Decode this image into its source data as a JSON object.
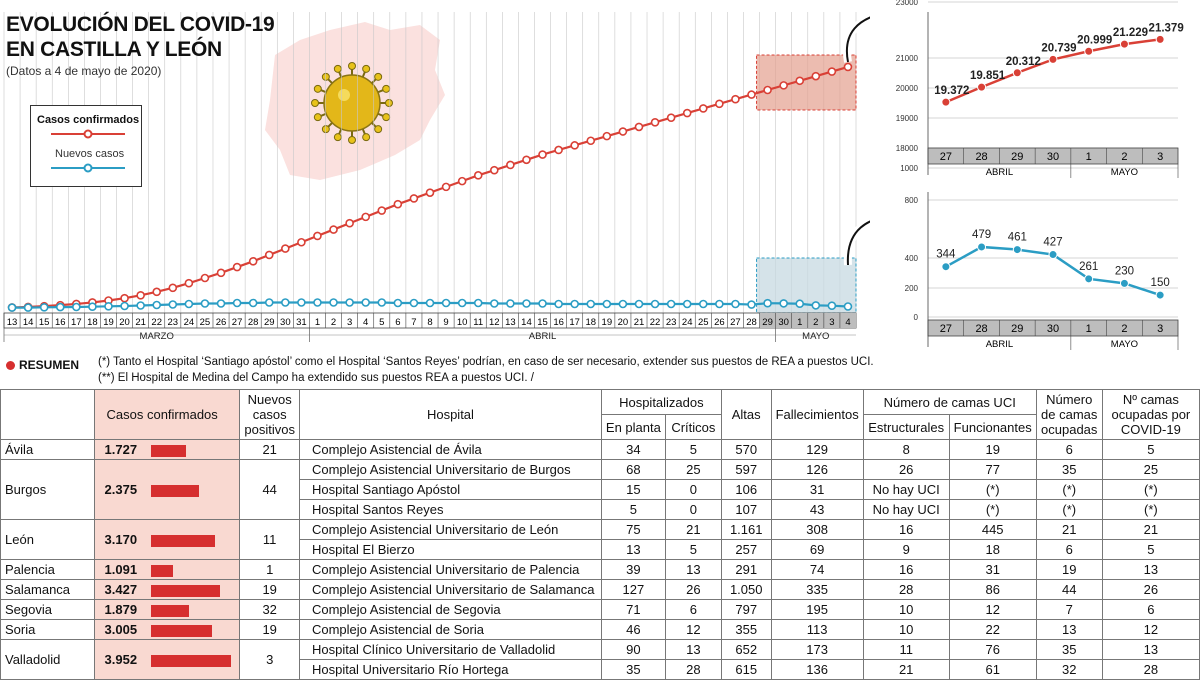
{
  "header": {
    "title_line1": "EVOLUCIÓN DEL COVID-19",
    "title_line2": "EN CASTILLA Y LEÓN",
    "subtitle": "(Datos a 4 de mayo de 2020)"
  },
  "legend": {
    "confirmed": "Casos confirmados",
    "new_cases": "Nuevos casos"
  },
  "colors": {
    "confirmed": "#d94036",
    "new": "#2b9dc4",
    "map": "#fbe1df",
    "highlight_red": "#e4a08e",
    "highlight_blue": "#c7d9e2"
  },
  "icons": {
    "virus": "virus-icon",
    "arrow": "curved-arrow-icon"
  },
  "chart_data": [
    {
      "type": "line",
      "title": "EVOLUCIÓN DEL COVID-19 EN CASTILLA Y LEÓN",
      "x": [
        "13",
        "14",
        "15",
        "16",
        "17",
        "18",
        "19",
        "20",
        "21",
        "22",
        "23",
        "24",
        "25",
        "26",
        "27",
        "28",
        "29",
        "30",
        "31",
        "1",
        "2",
        "3",
        "4",
        "5",
        "6",
        "7",
        "8",
        "9",
        "10",
        "11",
        "12",
        "13",
        "14",
        "15",
        "16",
        "17",
        "18",
        "19",
        "20",
        "21",
        "22",
        "23",
        "24",
        "25",
        "26",
        "27",
        "28",
        "29",
        "30",
        "1",
        "2",
        "3",
        "4"
      ],
      "month_labels": [
        "MARZO",
        "ABRIL",
        "MAYO"
      ],
      "series": [
        {
          "name": "Casos confirmados",
          "values": [
            50,
            90,
            160,
            250,
            350,
            480,
            650,
            850,
            1100,
            1400,
            1750,
            2150,
            2600,
            3050,
            3550,
            4050,
            4600,
            5150,
            5700,
            6250,
            6800,
            7350,
            7900,
            8450,
            9000,
            9500,
            10000,
            10500,
            11000,
            11500,
            11950,
            12400,
            12850,
            13300,
            13700,
            14100,
            14500,
            14900,
            15300,
            15700,
            16100,
            16500,
            16900,
            17300,
            17700,
            18100,
            18500,
            18900,
            19300,
            19700,
            20100,
            20500,
            20900
          ]
        },
        {
          "name": "Nuevos casos",
          "values": [
            40,
            40,
            70,
            90,
            100,
            130,
            170,
            200,
            250,
            300,
            350,
            400,
            450,
            450,
            500,
            500,
            550,
            550,
            550,
            550,
            550,
            550,
            550,
            550,
            500,
            500,
            500,
            500,
            500,
            500,
            450,
            450,
            450,
            450,
            400,
            400,
            400,
            400,
            400,
            400,
            400,
            400,
            400,
            400,
            400,
            400,
            344,
            479,
            461,
            427,
            261,
            230,
            150
          ]
        }
      ]
    },
    {
      "type": "line",
      "title": "",
      "x": [
        "27",
        "28",
        "29",
        "30",
        "1",
        "2",
        "3"
      ],
      "month_labels": [
        "ABRIL",
        "MAYO"
      ],
      "yticks": [
        1000,
        18000,
        19000,
        20000,
        21000,
        23000
      ],
      "series": [
        {
          "name": "Casos confirmados",
          "values": [
            19372,
            19851,
            20312,
            20739,
            20999,
            21229,
            21379
          ]
        }
      ],
      "value_labels": [
        "19.372",
        "19.851",
        "20.312",
        "20.739",
        "20.999",
        "21.229",
        "21.379"
      ]
    },
    {
      "type": "line",
      "title": "",
      "x": [
        "27",
        "28",
        "29",
        "30",
        "1",
        "2",
        "3"
      ],
      "month_labels": [
        "ABRIL",
        "MAYO"
      ],
      "yticks": [
        0,
        200,
        400,
        800
      ],
      "ylim": [
        0,
        800
      ],
      "series": [
        {
          "name": "Nuevos casos",
          "values": [
            344,
            479,
            461,
            427,
            261,
            230,
            150
          ]
        }
      ],
      "value_labels": [
        "344",
        "479",
        "461",
        "427",
        "261",
        "230",
        "150"
      ]
    }
  ],
  "summary": {
    "label": "RESUMEN",
    "note1": "(*) Tanto el Hospital ‘Santiago apóstol’ como el Hospital ‘Santos Reyes’ podrían, en caso de ser necesario, extender sus puestos de REA a puestos UCI.",
    "note2": "(**) El Hospital de Medina del Campo ha extendido sus puestos REA a puestos UCI.  /"
  },
  "table": {
    "headers": {
      "casos": "Casos confirmados",
      "nuevos": "Nuevos casos positivos",
      "hospital": "Hospital",
      "hospitalizados": "Hospitalizados",
      "en_planta": "En planta",
      "criticos": "Críticos",
      "altas": "Altas",
      "fallecimientos": "Fallecimientos",
      "camas_uci": "Número de camas UCI",
      "estructurales": "Estructurales",
      "funcionantes": "Funcionantes",
      "ocupadas": "Número de camas ocupadas",
      "covid": "Nº camas ocupadas por COVID-19"
    },
    "provinces": [
      {
        "name": "Ávila",
        "casos": "1.727",
        "casos_value": 1727,
        "nuevos": "21",
        "hospitals": [
          {
            "name": "Complejo Asistencial de Ávila",
            "planta": "34",
            "criticos": "5",
            "altas": "570",
            "fall": "129",
            "estr": "8",
            "func": "19",
            "ocup": "6",
            "covid": "5"
          }
        ]
      },
      {
        "name": "Burgos",
        "casos": "2.375",
        "casos_value": 2375,
        "nuevos": "44",
        "hospitals": [
          {
            "name": "Complejo Asistencial Universitario de Burgos",
            "planta": "68",
            "criticos": "25",
            "altas": "597",
            "fall": "126",
            "estr": "26",
            "func": "77",
            "ocup": "35",
            "covid": "25"
          },
          {
            "name": "Hospital Santiago Apóstol",
            "planta": "15",
            "criticos": "0",
            "altas": "106",
            "fall": "31",
            "estr": "No hay UCI",
            "func": "(*)",
            "ocup": "(*)",
            "covid": "(*)"
          },
          {
            "name": "Hospital Santos Reyes",
            "planta": "5",
            "criticos": "0",
            "altas": "107",
            "fall": "43",
            "estr": "No hay UCI",
            "func": "(*)",
            "ocup": "(*)",
            "covid": "(*)"
          }
        ]
      },
      {
        "name": "León",
        "casos": "3.170",
        "casos_value": 3170,
        "nuevos": "11",
        "hospitals": [
          {
            "name": "Complejo Asistencial Universitario de León",
            "planta": "75",
            "criticos": "21",
            "altas": "1.161",
            "fall": "308",
            "estr": "16",
            "func": "445",
            "ocup": "21",
            "covid": "21"
          },
          {
            "name": "Hospital El Bierzo",
            "planta": "13",
            "criticos": "5",
            "altas": "257",
            "fall": "69",
            "estr": "9",
            "func": "18",
            "ocup": "6",
            "covid": "5"
          }
        ]
      },
      {
        "name": "Palencia",
        "casos": "1.091",
        "casos_value": 1091,
        "nuevos": "1",
        "hospitals": [
          {
            "name": "Complejo Asistencial Universitario de Palencia",
            "planta": "39",
            "criticos": "13",
            "altas": "291",
            "fall": "74",
            "estr": "16",
            "func": "31",
            "ocup": "19",
            "covid": "13"
          }
        ]
      },
      {
        "name": "Salamanca",
        "casos": "3.427",
        "casos_value": 3427,
        "nuevos": "19",
        "hospitals": [
          {
            "name": "Complejo Asistencial Universitario de Salamanca",
            "planta": "127",
            "criticos": "26",
            "altas": "1.050",
            "fall": "335",
            "estr": "28",
            "func": "86",
            "ocup": "44",
            "covid": "26"
          }
        ]
      },
      {
        "name": "Segovia",
        "casos": "1.879",
        "casos_value": 1879,
        "nuevos": "32",
        "hospitals": [
          {
            "name": "Complejo Asistencial de Segovia",
            "planta": "71",
            "criticos": "6",
            "altas": "797",
            "fall": "195",
            "estr": "10",
            "func": "12",
            "ocup": "7",
            "covid": "6"
          }
        ]
      },
      {
        "name": "Soria",
        "casos": "3.005",
        "casos_value": 3005,
        "nuevos": "19",
        "hospitals": [
          {
            "name": "Complejo Asistencial de Soria",
            "planta": "46",
            "criticos": "12",
            "altas": "355",
            "fall": "113",
            "estr": "10",
            "func": "22",
            "ocup": "13",
            "covid": "12"
          }
        ]
      },
      {
        "name": "Valladolid",
        "casos": "3.952",
        "casos_value": 3952,
        "nuevos": "3",
        "hospitals": [
          {
            "name": "Hospital Clínico Universitario de Valladolid",
            "planta": "90",
            "criticos": "13",
            "altas": "652",
            "fall": "173",
            "estr": "11",
            "func": "76",
            "ocup": "35",
            "covid": "13"
          },
          {
            "name": "Hospital Universitario Río Hortega",
            "planta": "35",
            "criticos": "28",
            "altas": "615",
            "fall": "136",
            "estr": "21",
            "func": "61",
            "ocup": "32",
            "covid": "28"
          }
        ]
      }
    ]
  }
}
